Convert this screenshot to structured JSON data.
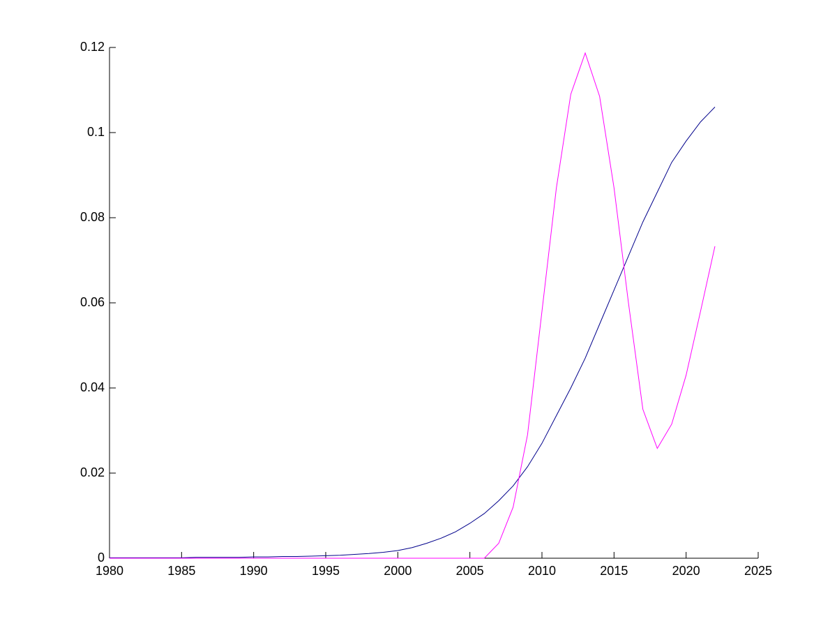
{
  "chart_data": {
    "type": "line",
    "x": [
      1980,
      1981,
      1982,
      1983,
      1984,
      1985,
      1986,
      1987,
      1988,
      1989,
      1990,
      1991,
      1992,
      1993,
      1994,
      1995,
      1996,
      1997,
      1998,
      1999,
      2000,
      2001,
      2002,
      2003,
      2004,
      2005,
      2006,
      2007,
      2008,
      2009,
      2010,
      2011,
      2012,
      2013,
      2014,
      2015,
      2016,
      2017,
      2018,
      2019,
      2020,
      2021,
      2022
    ],
    "series": [
      {
        "color": "#00008b",
        "values": [
          0.0001,
          0.0001,
          0.0001,
          0.0001,
          0.0001,
          0.0001,
          0.0002,
          0.0002,
          0.0002,
          0.0002,
          0.0003,
          0.0003,
          0.0004,
          0.0004,
          0.0005,
          0.0006,
          0.0007,
          0.0009,
          0.0011,
          0.0014,
          0.0018,
          0.0025,
          0.0035,
          0.0047,
          0.0062,
          0.0082,
          0.0105,
          0.0135,
          0.017,
          0.0215,
          0.027,
          0.0335,
          0.04,
          0.047,
          0.055,
          0.063,
          0.071,
          0.079,
          0.086,
          0.093,
          0.098,
          0.1025,
          0.106
        ]
      },
      {
        "color": "#ff00ff",
        "values": [
          0,
          0,
          0,
          0,
          0,
          0,
          0,
          0,
          0,
          0,
          0,
          0,
          0,
          0,
          0,
          0,
          0,
          0,
          0,
          0,
          0,
          0,
          0,
          0,
          0,
          0,
          0,
          0.0035,
          0.012,
          0.029,
          0.058,
          0.087,
          0.109,
          0.1187,
          0.1085,
          0.087,
          0.06,
          0.035,
          0.0258,
          0.0315,
          0.043,
          0.058,
          0.0733
        ]
      }
    ],
    "xlim": [
      1980,
      2025
    ],
    "xticks": [
      1980,
      1985,
      1990,
      1995,
      2000,
      2005,
      2010,
      2015,
      2020,
      2025
    ],
    "ylim": [
      0,
      0.12
    ],
    "yticks": [
      0,
      0.02,
      0.04,
      0.06,
      0.08,
      0.1,
      0.12
    ]
  }
}
